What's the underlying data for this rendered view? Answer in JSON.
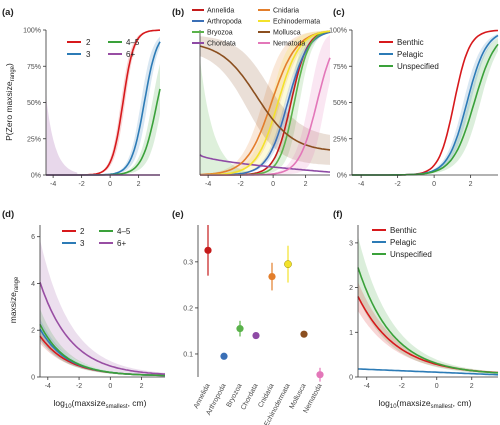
{
  "colors": {
    "red": "#d7191c",
    "blue": "#2c7bb6",
    "green": "#3aa13a",
    "purple": "#984ea3",
    "annelida": "#c51b1b",
    "arthropoda": "#3a6fb6",
    "bryozoa": "#5ab24a",
    "chordata": "#8e4aa5",
    "cnidaria": "#e37e2b",
    "echinodermata": "#f3e22b",
    "mollusca": "#8b4f1f",
    "nematoda": "#e377b9"
  },
  "common_axes": {
    "prob_ylabel_main": "P(Zero maxsize",
    "prob_ylabel_sub": "range",
    "prob_ylabel_end": ")",
    "maxsize_ylabel_main": "maxsize",
    "maxsize_ylabel_sub": "range",
    "xlabel_pre": "log",
    "xlabel_pre_sub": "10",
    "xlabel_mid": "(maxsize",
    "xlabel_mid_sub": "smallest",
    "xlabel_post": ", cm)"
  },
  "chart_data": [
    {
      "panel": "(a)",
      "type": "line",
      "x_range": [
        -4.5,
        3.5
      ],
      "ylim": [
        0,
        1
      ],
      "xticks": [
        "-4",
        "-2",
        "0",
        "2"
      ],
      "yticks": [
        "0%",
        "25%",
        "50%",
        "75%",
        "100%"
      ],
      "legend": [
        "2",
        "3",
        "4–5",
        "6+"
      ],
      "series": [
        {
          "name": "2",
          "color_key": "red",
          "shape": "logistic",
          "midpoint": 0.9,
          "slope": 2.6
        },
        {
          "name": "3",
          "color_key": "blue",
          "shape": "logistic",
          "midpoint": 2.4,
          "slope": 2.2
        },
        {
          "name": "4–5",
          "color_key": "green",
          "shape": "logistic",
          "midpoint": 3.3,
          "slope": 1.9
        },
        {
          "name": "6+",
          "color_key": "purple",
          "shape": "flat",
          "value": 0.0
        }
      ]
    },
    {
      "panel": "(b)",
      "type": "line",
      "x_range": [
        -4.5,
        3.5
      ],
      "ylim": [
        0,
        1
      ],
      "xticks": [
        "-4",
        "-2",
        "0",
        "2"
      ],
      "yticks": [],
      "legend": [
        "Annelida",
        "Arthropoda",
        "Bryozoa",
        "Chordata",
        "Cnidaria",
        "Echinodermata",
        "Mollusca",
        "Nematoda"
      ],
      "series": [
        {
          "name": "Annelida",
          "color_key": "annelida",
          "shape": "logistic",
          "midpoint": 1.1,
          "slope": 2.0
        },
        {
          "name": "Arthropoda",
          "color_key": "arthropoda",
          "shape": "logistic",
          "midpoint": 0.9,
          "slope": 1.6
        },
        {
          "name": "Bryozoa",
          "color_key": "bryozoa",
          "shape": "logistic",
          "midpoint": 1.3,
          "slope": 2.2
        },
        {
          "name": "Chordata",
          "color_key": "chordata",
          "shape": "decline",
          "start": 0.14,
          "end": 0.02
        },
        {
          "name": "Cnidaria",
          "color_key": "cnidaria",
          "shape": "logistic",
          "midpoint": -0.1,
          "slope": 1.3
        },
        {
          "name": "Echinodermata",
          "color_key": "echinodermata",
          "shape": "logistic",
          "midpoint": 0.3,
          "slope": 1.5
        },
        {
          "name": "Mollusca",
          "color_key": "mollusca",
          "shape": "logistic_down",
          "midpoint": -1.0,
          "slope": 0.9,
          "top": 0.92,
          "bottom": 0.16
        },
        {
          "name": "Nematoda",
          "color_key": "nematoda",
          "shape": "logistic",
          "midpoint": 2.7,
          "slope": 1.8
        }
      ]
    },
    {
      "panel": "(c)",
      "type": "line",
      "x_range": [
        -4.5,
        3.5
      ],
      "ylim": [
        0,
        1
      ],
      "xticks": [
        "-4",
        "-2",
        "0",
        "2"
      ],
      "yticks": [
        "0%",
        "25%",
        "50%",
        "75%",
        "100%"
      ],
      "legend": [
        "Benthic",
        "Pelagic",
        "Unspecified"
      ],
      "series": [
        {
          "name": "Benthic",
          "color_key": "red",
          "shape": "logistic",
          "midpoint": 1.1,
          "slope": 2.4
        },
        {
          "name": "Pelagic",
          "color_key": "blue",
          "shape": "logistic",
          "midpoint": 1.8,
          "slope": 1.9
        },
        {
          "name": "Unspecified",
          "color_key": "green",
          "shape": "logistic",
          "midpoint": 2.2,
          "slope": 1.7
        }
      ]
    },
    {
      "panel": "(d)",
      "type": "line",
      "x_range": [
        -4.5,
        3.5
      ],
      "ylim": [
        0,
        6.5
      ],
      "xticks": [
        "-4",
        "-2",
        "0",
        "2"
      ],
      "yticks": [
        "0",
        "2",
        "4",
        "6"
      ],
      "legend": [
        "2",
        "3",
        "4–5",
        "6+"
      ],
      "series": [
        {
          "name": "2",
          "color_key": "red",
          "shape": "exp",
          "at_min_x": 1.7,
          "decay": 0.55
        },
        {
          "name": "3",
          "color_key": "blue",
          "shape": "exp",
          "at_min_x": 2.0,
          "decay": 0.58
        },
        {
          "name": "4–5",
          "color_key": "green",
          "shape": "exp",
          "at_min_x": 2.2,
          "decay": 0.6
        },
        {
          "name": "6+",
          "color_key": "purple",
          "shape": "exp",
          "at_min_x": 4.0,
          "decay": 0.5
        }
      ]
    },
    {
      "panel": "(e)",
      "type": "scatter",
      "ylim": [
        0.05,
        0.38
      ],
      "yticks": [
        "0.1",
        "0.2",
        "0.3"
      ],
      "categories": [
        "Annelida",
        "Arthropoda",
        "Bryozoa",
        "Chordata",
        "Cnidaria",
        "Echinodermata",
        "Mollusca",
        "Nematoda"
      ],
      "values": [
        0.325,
        0.095,
        0.155,
        0.14,
        0.268,
        0.295,
        0.143,
        0.055
      ],
      "err": [
        0.055,
        0.0,
        0.017,
        0.0,
        0.03,
        0.04,
        0.0,
        0.015
      ]
    },
    {
      "panel": "(f)",
      "type": "line",
      "x_range": [
        -4.5,
        3.5
      ],
      "ylim": [
        0,
        3.4
      ],
      "xticks": [
        "-4",
        "-2",
        "0",
        "2"
      ],
      "yticks": [
        "0",
        "1",
        "2",
        "3"
      ],
      "legend": [
        "Benthic",
        "Pelagic",
        "Unspecified"
      ],
      "series": [
        {
          "name": "Benthic",
          "color_key": "red",
          "shape": "exp",
          "at_min_x": 1.75,
          "decay": 0.45
        },
        {
          "name": "Pelagic",
          "color_key": "blue",
          "shape": "linear",
          "start": 0.18,
          "end": 0.05
        },
        {
          "name": "Unspecified",
          "color_key": "green",
          "shape": "exp",
          "at_min_x": 2.4,
          "decay": 0.5
        }
      ]
    }
  ]
}
